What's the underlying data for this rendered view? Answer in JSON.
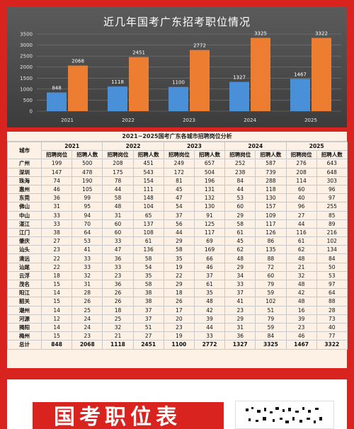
{
  "chart_data": [
    {
      "type": "bar",
      "title": "近几年国考广东招考职位情况",
      "categories": [
        "2021",
        "2022",
        "2023",
        "2024",
        "2025"
      ],
      "series": [
        {
          "name": "",
          "values": [
            848,
            1118,
            1100,
            1327,
            1467
          ]
        },
        {
          "name": "",
          "values": [
            2068,
            2451,
            2772,
            3325,
            3322
          ]
        }
      ],
      "yticks": [
        "0",
        "500",
        "1000",
        "1500",
        "2000",
        "2500",
        "3000",
        "3500"
      ],
      "ylim": [
        0,
        3500
      ],
      "grid": true,
      "colors": {
        "series1": "#4a90d9",
        "series2": "#ed7d31"
      }
    },
    {
      "type": "table",
      "title": "2021~2025国考广东各城市招聘岗位分析",
      "city_header": "城市",
      "years": [
        "2021",
        "2022",
        "2023",
        "2024",
        "2025"
      ],
      "subheaders": [
        "招聘岗位",
        "招聘人数"
      ],
      "rows": [
        {
          "city": "广州",
          "values": [
            "199",
            "500",
            "208",
            "451",
            "249",
            "657",
            "252",
            "587",
            "276",
            "643"
          ]
        },
        {
          "city": "深圳",
          "values": [
            "147",
            "478",
            "175",
            "543",
            "172",
            "504",
            "238",
            "739",
            "208",
            "648"
          ]
        },
        {
          "city": "珠海",
          "values": [
            "74",
            "190",
            "78",
            "154",
            "81",
            "196",
            "84",
            "288",
            "114",
            "303"
          ]
        },
        {
          "city": "惠州",
          "values": [
            "46",
            "105",
            "44",
            "111",
            "45",
            "131",
            "44",
            "118",
            "60",
            "96"
          ]
        },
        {
          "city": "东莞",
          "values": [
            "36",
            "99",
            "58",
            "148",
            "47",
            "132",
            "53",
            "130",
            "40",
            "97"
          ]
        },
        {
          "city": "佛山",
          "values": [
            "31",
            "95",
            "48",
            "104",
            "54",
            "130",
            "60",
            "157",
            "96",
            "255"
          ]
        },
        {
          "city": "中山",
          "values": [
            "33",
            "94",
            "31",
            "65",
            "37",
            "91",
            "29",
            "109",
            "27",
            "85"
          ]
        },
        {
          "city": "湛江",
          "values": [
            "33",
            "70",
            "60",
            "137",
            "56",
            "125",
            "58",
            "117",
            "44",
            "89"
          ]
        },
        {
          "city": "江门",
          "values": [
            "38",
            "64",
            "60",
            "108",
            "44",
            "117",
            "61",
            "126",
            "116",
            "216"
          ]
        },
        {
          "city": "肇庆",
          "values": [
            "27",
            "53",
            "33",
            "61",
            "29",
            "69",
            "45",
            "86",
            "61",
            "102"
          ]
        },
        {
          "city": "汕头",
          "values": [
            "23",
            "41",
            "47",
            "136",
            "58",
            "169",
            "62",
            "135",
            "62",
            "134"
          ]
        },
        {
          "city": "清远",
          "values": [
            "22",
            "33",
            "36",
            "58",
            "35",
            "66",
            "48",
            "88",
            "48",
            "84"
          ]
        },
        {
          "city": "汕尾",
          "values": [
            "22",
            "33",
            "33",
            "54",
            "19",
            "46",
            "29",
            "72",
            "21",
            "50"
          ]
        },
        {
          "city": "云浮",
          "values": [
            "18",
            "32",
            "23",
            "35",
            "22",
            "37",
            "34",
            "60",
            "32",
            "53"
          ]
        },
        {
          "city": "茂名",
          "values": [
            "15",
            "31",
            "36",
            "58",
            "29",
            "61",
            "33",
            "79",
            "48",
            "97"
          ]
        },
        {
          "city": "阳江",
          "values": [
            "14",
            "28",
            "26",
            "38",
            "18",
            "35",
            "37",
            "59",
            "42",
            "64"
          ]
        },
        {
          "city": "韶关",
          "values": [
            "15",
            "26",
            "26",
            "38",
            "26",
            "48",
            "41",
            "102",
            "48",
            "88"
          ]
        },
        {
          "city": "潮州",
          "values": [
            "14",
            "25",
            "18",
            "37",
            "17",
            "42",
            "23",
            "51",
            "16",
            "28"
          ]
        },
        {
          "city": "河源",
          "values": [
            "12",
            "24",
            "25",
            "37",
            "20",
            "39",
            "29",
            "79",
            "39",
            "73"
          ]
        },
        {
          "city": "揭阳",
          "values": [
            "14",
            "24",
            "32",
            "51",
            "23",
            "44",
            "31",
            "59",
            "23",
            "40"
          ]
        },
        {
          "city": "梅州",
          "values": [
            "15",
            "23",
            "21",
            "27",
            "19",
            "33",
            "36",
            "84",
            "46",
            "77"
          ]
        }
      ],
      "total_row": {
        "city": "总计",
        "values": [
          "848",
          "2068",
          "1118",
          "2451",
          "1100",
          "2772",
          "1327",
          "3325",
          "1467",
          "3322"
        ]
      }
    }
  ],
  "banner": {
    "text": "国考职位表"
  }
}
